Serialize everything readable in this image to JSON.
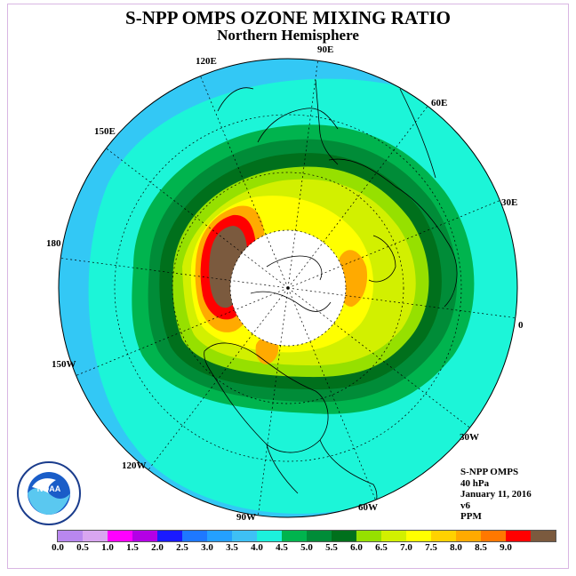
{
  "title": "S-NPP OMPS OZONE MIXING RATIO",
  "subtitle": "Northern Hemisphere",
  "longitude_labels": [
    "90E",
    "60E",
    "30E",
    "0",
    "30W",
    "60W",
    "90W",
    "120W",
    "150W",
    "180",
    "150E",
    "120E"
  ],
  "info": {
    "line1": "S-NPP OMPS",
    "line2": "40 hPa",
    "line3": "January 11, 2016",
    "line4": "v6",
    "line5": "PPM"
  },
  "logo": {
    "text": "NOAA",
    "ring_text": "NATIONAL OCEANIC AND ATMOSPHERIC ADMINISTRATION U.S. DEPARTMENT OF COMMERCE"
  },
  "colorbar": {
    "colors": [
      "#b987ef",
      "#d9a6f0",
      "#ff00ff",
      "#b400e6",
      "#1a1aff",
      "#1e78ff",
      "#24a0ff",
      "#3ec0f5",
      "#1cf0dc",
      "#00b44e",
      "#008c38",
      "#00701c",
      "#96e000",
      "#d2f000",
      "#ffff00",
      "#ffd200",
      "#ffaa00",
      "#ff7800",
      "#ff0000",
      "#7b5a3e"
    ],
    "ticks": [
      "0.0",
      "0.5",
      "1.0",
      "1.5",
      "2.0",
      "2.5",
      "3.0",
      "3.5",
      "4.0",
      "4.5",
      "5.0",
      "5.5",
      "6.0",
      "6.5",
      "7.0",
      "7.5",
      "8.0",
      "8.5",
      "9.0"
    ]
  },
  "map_colors": {
    "outer": "#33c8f5",
    "cyan": "#1cf5d8",
    "green1": "#00b44e",
    "green2": "#008c38",
    "green3": "#00701c",
    "lightgreen": "#96e000",
    "yellowgreen": "#d2f000",
    "yellow": "#ffff00",
    "orange": "#ffaa00",
    "red": "#ff0000",
    "brown": "#7b5a3e",
    "pole": "#ffffff"
  }
}
